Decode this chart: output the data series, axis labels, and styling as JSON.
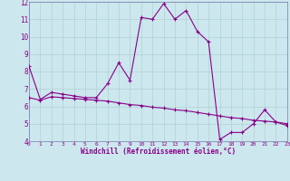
{
  "xlabel": "Windchill (Refroidissement éolien,°C)",
  "ylabel": "",
  "bg_color": "#cce8ee",
  "line_color": "#880088",
  "grid_color": "#aacccc",
  "spine_color": "#7777aa",
  "xmin": 0,
  "xmax": 23,
  "ymin": 4,
  "ymax": 12,
  "x_ticks": [
    0,
    1,
    2,
    3,
    4,
    5,
    6,
    7,
    8,
    9,
    10,
    11,
    12,
    13,
    14,
    15,
    16,
    17,
    18,
    19,
    20,
    21,
    22,
    23
  ],
  "y_ticks": [
    4,
    5,
    6,
    7,
    8,
    9,
    10,
    11,
    12
  ],
  "curve1_x": [
    0,
    1,
    2,
    3,
    4,
    5,
    6,
    7,
    8,
    9,
    10,
    11,
    12,
    13,
    14,
    15,
    16,
    17,
    18,
    19,
    20,
    21,
    22,
    23
  ],
  "curve1_y": [
    8.3,
    6.4,
    6.8,
    6.7,
    6.6,
    6.5,
    6.5,
    7.3,
    8.5,
    7.5,
    11.1,
    11.0,
    11.9,
    11.0,
    11.5,
    10.3,
    9.7,
    4.1,
    4.5,
    4.5,
    5.0,
    5.8,
    5.1,
    4.9
  ],
  "curve2_x": [
    0,
    1,
    2,
    3,
    4,
    5,
    6,
    7,
    8,
    9,
    10,
    11,
    12,
    13,
    14,
    15,
    16,
    17,
    18,
    19,
    20,
    21,
    22,
    23
  ],
  "curve2_y": [
    6.5,
    6.35,
    6.55,
    6.5,
    6.45,
    6.4,
    6.35,
    6.3,
    6.2,
    6.1,
    6.05,
    5.95,
    5.9,
    5.8,
    5.75,
    5.65,
    5.55,
    5.45,
    5.35,
    5.3,
    5.2,
    5.15,
    5.1,
    5.0
  ]
}
